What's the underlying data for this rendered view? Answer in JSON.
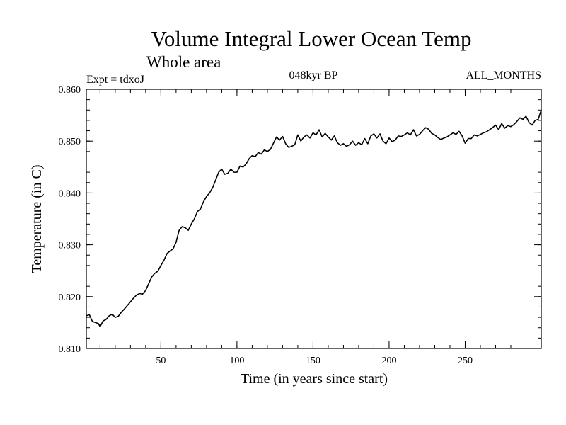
{
  "chart_data": {
    "type": "line",
    "title": "Volume Integral Lower Ocean Temp",
    "subtitle": "Whole area",
    "annotations": {
      "left": "Expt = tdxoJ",
      "center": "048kyr BP",
      "right": "ALL_MONTHS"
    },
    "xlabel": "Time (in years since start)",
    "ylabel": "Temperature (in C)",
    "xlim": [
      1,
      300
    ],
    "ylim": [
      0.81,
      0.86
    ],
    "x_ticks": [
      50,
      100,
      150,
      200,
      250
    ],
    "x_tick_labels": [
      "50",
      "100",
      "150",
      "200",
      "250"
    ],
    "y_ticks": [
      0.81,
      0.82,
      0.83,
      0.84,
      0.85,
      0.86
    ],
    "y_tick_labels": [
      "0.810",
      "0.820",
      "0.830",
      "0.840",
      "0.850",
      "0.860"
    ],
    "x_minor_step": 10,
    "y_minor_step": 0.002,
    "grid": false,
    "series": [
      {
        "x": [
          1,
          3,
          5,
          7,
          9,
          10,
          12,
          14,
          16,
          18,
          20,
          22,
          24,
          26,
          28,
          30,
          32,
          34,
          36,
          38,
          40,
          42,
          44,
          46,
          48,
          50,
          52,
          54,
          56,
          58,
          60,
          62,
          64,
          66,
          68,
          70,
          72,
          74,
          76,
          78,
          80,
          82,
          84,
          86,
          88,
          90,
          92,
          94,
          96,
          98,
          100,
          102,
          104,
          106,
          108,
          110,
          112,
          114,
          116,
          118,
          120,
          122,
          124,
          126,
          128,
          130,
          132,
          134,
          136,
          138,
          140,
          142,
          144,
          146,
          148,
          150,
          152,
          154,
          156,
          158,
          160,
          162,
          164,
          166,
          168,
          170,
          172,
          174,
          176,
          178,
          180,
          182,
          184,
          186,
          188,
          190,
          192,
          194,
          196,
          198,
          200,
          202,
          204,
          206,
          208,
          210,
          212,
          214,
          216,
          218,
          220,
          222,
          224,
          226,
          228,
          230,
          232,
          234,
          236,
          238,
          240,
          242,
          244,
          246,
          248,
          250,
          252,
          254,
          256,
          258,
          260,
          262,
          264,
          266,
          268,
          270,
          272,
          274,
          276,
          278,
          280,
          282,
          284,
          286,
          288,
          290,
          292,
          294,
          296,
          298,
          300
        ],
        "values": [
          0.8163,
          0.8165,
          0.8152,
          0.815,
          0.8148,
          0.8142,
          0.8153,
          0.8156,
          0.8163,
          0.8166,
          0.816,
          0.8162,
          0.817,
          0.8176,
          0.8183,
          0.819,
          0.8197,
          0.8203,
          0.8206,
          0.8205,
          0.8212,
          0.8225,
          0.8238,
          0.8245,
          0.8249,
          0.826,
          0.827,
          0.8283,
          0.8288,
          0.8292,
          0.8305,
          0.8328,
          0.8335,
          0.8333,
          0.8328,
          0.834,
          0.835,
          0.8364,
          0.8369,
          0.8383,
          0.8393,
          0.84,
          0.841,
          0.8425,
          0.844,
          0.8446,
          0.8436,
          0.8438,
          0.8446,
          0.844,
          0.844,
          0.8452,
          0.845,
          0.8456,
          0.8466,
          0.8472,
          0.847,
          0.8478,
          0.8475,
          0.8483,
          0.848,
          0.8484,
          0.8496,
          0.8508,
          0.8502,
          0.8509,
          0.8495,
          0.8488,
          0.849,
          0.8493,
          0.8512,
          0.85,
          0.8508,
          0.8512,
          0.8506,
          0.8516,
          0.8512,
          0.8522,
          0.8508,
          0.8515,
          0.8508,
          0.8502,
          0.851,
          0.8497,
          0.8492,
          0.8495,
          0.849,
          0.8493,
          0.85,
          0.8492,
          0.8497,
          0.8493,
          0.8505,
          0.8495,
          0.851,
          0.8514,
          0.8506,
          0.8514,
          0.85,
          0.8495,
          0.8506,
          0.8499,
          0.8502,
          0.851,
          0.8509,
          0.8512,
          0.8516,
          0.8512,
          0.8522,
          0.851,
          0.8513,
          0.852,
          0.8526,
          0.8523,
          0.8515,
          0.8512,
          0.8507,
          0.8503,
          0.8506,
          0.8508,
          0.8512,
          0.8516,
          0.8513,
          0.8519,
          0.851,
          0.8496,
          0.8505,
          0.8505,
          0.8512,
          0.851,
          0.8513,
          0.8516,
          0.8518,
          0.8522,
          0.8526,
          0.8531,
          0.8522,
          0.8534,
          0.8525,
          0.853,
          0.8528,
          0.8532,
          0.8538,
          0.8545,
          0.8542,
          0.8548,
          0.8536,
          0.8531,
          0.854,
          0.8542,
          0.856
        ]
      }
    ]
  }
}
